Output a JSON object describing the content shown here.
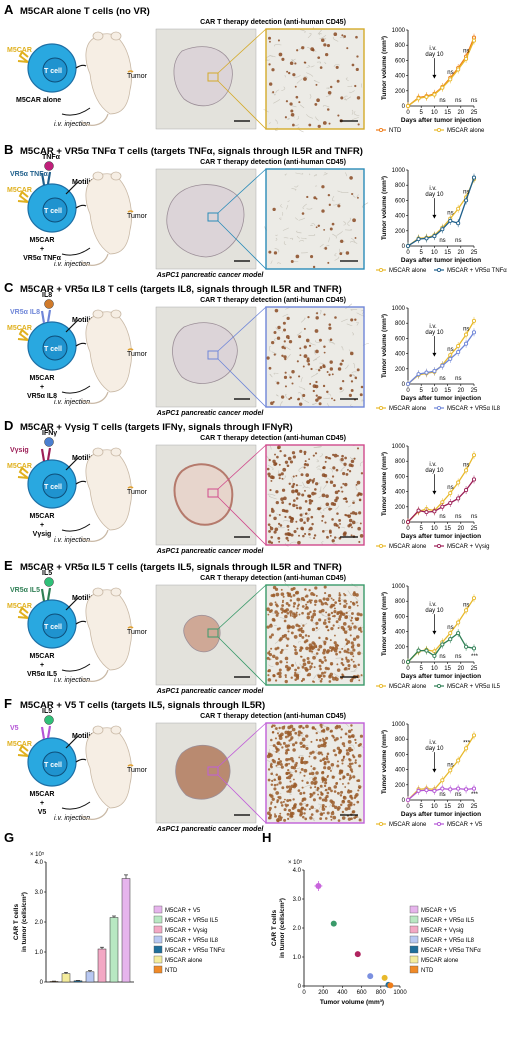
{
  "colors": {
    "cell": "#29a8e0",
    "cell_dark": "#1d6fa5",
    "nucleus": "#1f93cf",
    "m5car": "#e0b01e",
    "orange": "#ef7d1a",
    "m5car_alone": "#e8b92b",
    "tnf": "#1f5f8b",
    "il8": "#6f86d8",
    "ifng": "#9c1f57",
    "il5": "#2f7f55",
    "v5": "#b455d6",
    "tissue_bg": "#e3e2dc",
    "micro_bg": "#ecebe6"
  },
  "common": {
    "tcell": "T cell",
    "tumor": "Tumor",
    "motility": "Motility",
    "iv_injection": "i.v. injection",
    "detect_title": "CAR T therapy detection (anti-human CD45)",
    "model": "AsPC1 pancreatic cancer model",
    "ylabel": "Tumor volume (mm³)",
    "xlabel": "Days after tumor injection",
    "iv": "i.v.",
    "day10": "day 10",
    "xticks": [
      "0",
      "5",
      "10",
      "15",
      "20",
      "25"
    ],
    "yticks": [
      "0",
      "200",
      "400",
      "600",
      "800",
      "1000"
    ],
    "m5car_label": "M5CAR"
  },
  "panels": [
    {
      "letter": "A",
      "title": "M5CAR alone T cells (no VR)",
      "receptor": "",
      "ligand": "",
      "construct": [
        "M5CAR alone"
      ],
      "frame_color": "#d4aa2a",
      "tumor_size": "small",
      "density": 0.1,
      "legend": [
        "NTD",
        "M5CAR alone"
      ],
      "ns_labels": [
        "ns",
        "ns",
        "ns",
        "ns",
        "ns"
      ],
      "chart_data": {
        "type": "line",
        "x": [
          0,
          4,
          7,
          10,
          13,
          16,
          19,
          22,
          25
        ],
        "ylim": [
          0,
          1000
        ],
        "xlim": [
          0,
          25
        ],
        "series": [
          {
            "name": "NTD",
            "values": [
              0,
              110,
              130,
              160,
              250,
              370,
              500,
              650,
              900
            ]
          },
          {
            "name": "M5CAR alone",
            "values": [
              0,
              100,
              120,
              150,
              240,
              350,
              480,
              620,
              860
            ]
          }
        ]
      }
    },
    {
      "letter": "B",
      "title": "M5CAR + VR5α TNFα T cells (targets TNFα, signals through IL5R and TNFR)",
      "receptor": "VR5α TNFα",
      "ligand": "TNFα",
      "construct": [
        "M5CAR",
        "+",
        "VR5α TNFα"
      ],
      "frame_color": "#2a8bb8",
      "tumor_size": "large",
      "density": 0.04,
      "legend": [
        "M5CAR alone",
        "M5CAR + VR5α TNFα"
      ],
      "ns_labels": [
        "ns",
        "ns",
        "ns",
        "ns"
      ],
      "chart_data": {
        "type": "line",
        "x": [
          0,
          4,
          7,
          10,
          13,
          16,
          19,
          22,
          25
        ],
        "ylim": [
          0,
          1000
        ],
        "xlim": [
          0,
          25
        ],
        "series": [
          {
            "name": "M5CAR alone",
            "values": [
              0,
              100,
              110,
              140,
              240,
              360,
              490,
              640,
              880
            ]
          },
          {
            "name": "M5CAR + VR5α TNFα",
            "values": [
              0,
              90,
              100,
              130,
              220,
              330,
              300,
              600,
              900
            ]
          }
        ]
      }
    },
    {
      "letter": "C",
      "title": "M5CAR + VR5α IL8 T cells (targets IL8, signals through IL5R and TNFR)",
      "receptor": "VR5α IL8",
      "ligand": "IL8",
      "construct": [
        "M5CAR",
        "+",
        "VR5α IL8"
      ],
      "frame_color": "#6f86d8",
      "tumor_size": "medium",
      "density": 0.18,
      "legend": [
        "M5CAR alone",
        "M5CAR + VR5α IL8"
      ],
      "ns_labels": [
        "ns",
        "ns",
        "ns",
        "ns"
      ],
      "chart_data": {
        "type": "line",
        "x": [
          0,
          4,
          7,
          10,
          13,
          16,
          19,
          22,
          25
        ],
        "ylim": [
          0,
          1000
        ],
        "xlim": [
          0,
          25
        ],
        "series": [
          {
            "name": "M5CAR alone",
            "values": [
              0,
              120,
              140,
              160,
              250,
              380,
              500,
              650,
              830
            ]
          },
          {
            "name": "M5CAR + VR5α IL8",
            "values": [
              0,
              130,
              150,
              170,
              240,
              330,
              420,
              530,
              680
            ]
          }
        ]
      }
    },
    {
      "letter": "D",
      "title": "M5CAR + Vγsig T cells (targets IFNγ, signals through IFNγR)",
      "receptor": "Vγsig",
      "ligand": "IFNγ",
      "construct": [
        "M5CAR",
        "+",
        "Vγsig"
      ],
      "frame_color": "#d04a8c",
      "tumor_size": "ring",
      "density": 0.45,
      "legend": [
        "M5CAR alone",
        "M5CAR + Vγsig"
      ],
      "ns_labels": [
        "ns",
        "ns",
        "ns",
        "ns",
        "ns"
      ],
      "chart_data": {
        "type": "line",
        "x": [
          0,
          4,
          7,
          10,
          13,
          16,
          19,
          22,
          25
        ],
        "ylim": [
          0,
          1000
        ],
        "xlim": [
          0,
          25
        ],
        "series": [
          {
            "name": "M5CAR alone",
            "values": [
              0,
              140,
              170,
              150,
              260,
              380,
              520,
              680,
              880
            ]
          },
          {
            "name": "M5CAR + Vγsig",
            "values": [
              0,
              150,
              130,
              140,
              200,
              250,
              310,
              420,
              560
            ]
          }
        ]
      }
    },
    {
      "letter": "E",
      "title": "M5CAR + VR5α IL5 T cells (targets IL5, signals through IL5R and TNFR)",
      "receptor": "VR5α IL5",
      "ligand": "IL5",
      "construct": [
        "M5CAR",
        "+",
        "VR5α IL5"
      ],
      "frame_color": "#3a9a6a",
      "tumor_size": "small2",
      "density": 0.75,
      "legend": [
        "M5CAR alone",
        "M5CAR + VR5α IL5"
      ],
      "ns_labels": [
        "ns",
        "ns",
        "ns",
        "ns",
        "***"
      ],
      "chart_data": {
        "type": "line",
        "x": [
          0,
          4,
          7,
          10,
          13,
          16,
          19,
          22,
          25
        ],
        "ylim": [
          0,
          1000
        ],
        "xlim": [
          0,
          25
        ],
        "series": [
          {
            "name": "M5CAR alone",
            "values": [
              0,
              140,
              160,
              140,
              260,
              380,
              520,
              680,
              840
            ]
          },
          {
            "name": "M5CAR + VR5α IL5",
            "values": [
              0,
              150,
              150,
              80,
              230,
              300,
              380,
              200,
              180
            ]
          }
        ]
      }
    },
    {
      "letter": "F",
      "title": "M5CAR + V5 T cells (targets IL5, signals through IL5R)",
      "receptor": "V5",
      "ligand": "IL5",
      "construct": [
        "M5CAR",
        "+",
        "V5"
      ],
      "frame_color": "#c05fd8",
      "tumor_size": "blob",
      "density": 0.85,
      "legend": [
        "M5CAR alone",
        "M5CAR + V5"
      ],
      "ns_labels": [
        "ns",
        "ns",
        "ns",
        "***",
        "***"
      ],
      "chart_data": {
        "type": "line",
        "x": [
          0,
          4,
          7,
          10,
          13,
          16,
          19,
          22,
          25
        ],
        "ylim": [
          0,
          1000
        ],
        "xlim": [
          0,
          25
        ],
        "series": [
          {
            "name": "M5CAR alone",
            "values": [
              0,
              140,
              150,
              140,
              260,
              390,
              520,
              680,
              850
            ]
          },
          {
            "name": "M5CAR + V5",
            "values": [
              0,
              120,
              130,
              120,
              150,
              140,
              150,
              140,
              150
            ]
          }
        ]
      }
    }
  ],
  "panelG": {
    "letter": "G",
    "ylabel_line1": "CAR T cells",
    "ylabel_line2": "in tumor (cells/cm²)",
    "multiplier": "× 10⁵",
    "yticks": [
      "0",
      "1.0",
      "2.0",
      "3.0",
      "4.0"
    ],
    "legend": [
      "M5CAR + V5",
      "M5CAR + VR5α IL5",
      "M5CAR + Vγsig",
      "M5CAR + VR5α IL8",
      "M5CAR + VR5α TNFα",
      "M5CAR alone",
      "NTD"
    ],
    "legend_colors": [
      "#e6b4ec",
      "#b8e8c2",
      "#f3a8c4",
      "#b8c8f2",
      "#1f6f9b",
      "#f4ec9c",
      "#f08a28"
    ],
    "chart_data": {
      "type": "bar",
      "categories": [
        "NTD",
        "M5CAR alone",
        "M5CAR + VR5α TNFα",
        "M5CAR + VR5α IL8",
        "M5CAR + Vγsig",
        "M5CAR + VR5α IL5",
        "M5CAR + V5"
      ],
      "values": [
        0.02,
        0.28,
        0.04,
        0.34,
        1.1,
        2.15,
        3.45
      ],
      "errors": [
        0.01,
        0.04,
        0.01,
        0.04,
        0.06,
        0.05,
        0.12
      ],
      "colors": [
        "#f08a28",
        "#f4ec9c",
        "#1f6f9b",
        "#b8c8f2",
        "#f3a8c4",
        "#b8e8c2",
        "#e6b4ec"
      ],
      "ylim": [
        0,
        4
      ],
      "unit": "× 10⁵"
    }
  },
  "panelH": {
    "letter": "H",
    "ylabel_line1": "CAR T cells",
    "ylabel_line2": "in tumor (cells/cm²)",
    "multiplier": "× 10⁵",
    "xlabel": "Tumor volume (mm³)",
    "yticks": [
      "0",
      "1.0",
      "2.0",
      "3.0",
      "4.0"
    ],
    "xticks": [
      "0",
      "100",
      "200",
      "300",
      "400",
      "500",
      "600",
      "700",
      "800",
      "900",
      "1000"
    ],
    "legend": [
      "M5CAR + V5",
      "M5CAR + VR5α IL5",
      "M5CAR + Vγsig",
      "M5CAR + VR5α IL8",
      "M5CAR + VR5α TNFα",
      "M5CAR alone",
      "NTD"
    ],
    "legend_colors": [
      "#e6b4ec",
      "#b8e8c2",
      "#f3a8c4",
      "#b8c8f2",
      "#1f6f9b",
      "#f4ec9c",
      "#f08a28"
    ],
    "chart_data": {
      "type": "scatter",
      "points": [
        {
          "name": "M5CAR + V5",
          "x": 150,
          "y": 3.45,
          "color": "#c864dc"
        },
        {
          "name": "M5CAR + VR5α IL5",
          "x": 310,
          "y": 2.15,
          "color": "#3a9a6a"
        },
        {
          "name": "M5CAR + Vγsig",
          "x": 560,
          "y": 1.1,
          "color": "#b0245f"
        },
        {
          "name": "M5CAR + VR5α IL8",
          "x": 690,
          "y": 0.34,
          "color": "#7b90e0"
        },
        {
          "name": "M5CAR alone",
          "x": 840,
          "y": 0.28,
          "color": "#e8b92b"
        },
        {
          "name": "M5CAR + VR5α TNFα",
          "x": 880,
          "y": 0.04,
          "color": "#1f6f9b"
        },
        {
          "name": "NTD",
          "x": 900,
          "y": 0.02,
          "color": "#ef7d1a"
        }
      ],
      "xlim": [
        0,
        1000
      ],
      "ylim": [
        0,
        4
      ]
    }
  }
}
